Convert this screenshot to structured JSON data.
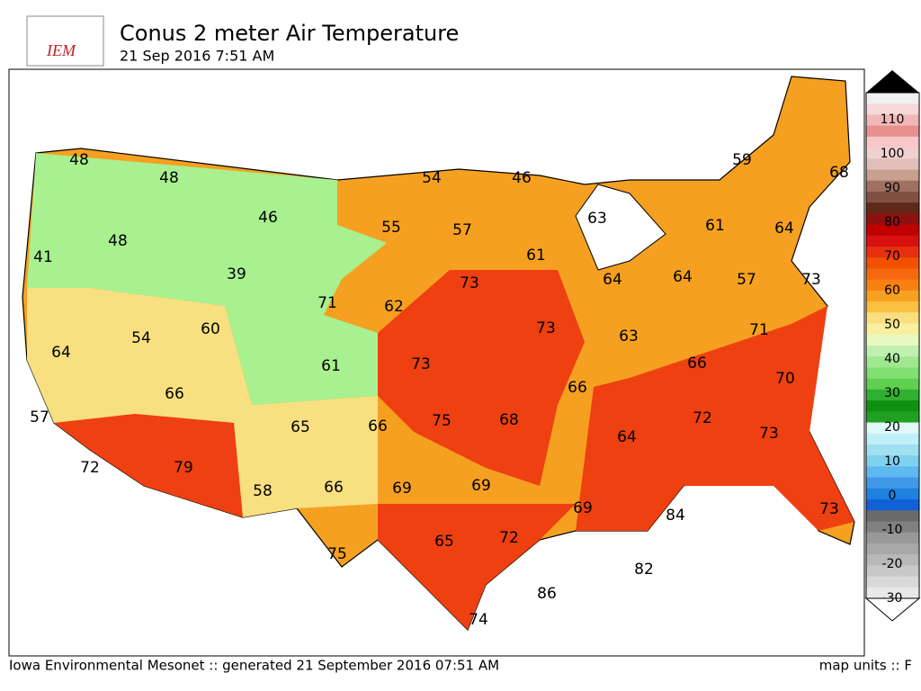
{
  "header": {
    "logo": "IEM",
    "title": "Conus 2 meter Air Temperature",
    "subtitle": "21 Sep 2016 7:51 AM"
  },
  "colorbar": {
    "labels": [
      110,
      100,
      90,
      80,
      70,
      60,
      50,
      40,
      30,
      20,
      10,
      0,
      -10,
      -20,
      -30
    ]
  },
  "map": {
    "values": [
      48,
      48,
      46,
      54,
      46,
      59,
      68,
      41,
      48,
      39,
      55,
      57,
      63,
      61,
      61,
      64,
      71,
      62,
      73,
      64,
      64,
      57,
      73,
      64,
      54,
      60,
      73,
      63,
      71,
      61,
      73,
      66,
      66,
      70,
      57,
      66,
      65,
      66,
      75,
      68,
      64,
      72,
      73,
      72,
      79,
      58,
      66,
      69,
      69,
      69,
      84,
      73,
      75,
      65,
      72,
      82,
      86,
      74
    ]
  },
  "footer": {
    "left": "Iowa Environmental Mesonet :: generated 21 September 2016 07:51 AM",
    "right": "map units :: F"
  }
}
